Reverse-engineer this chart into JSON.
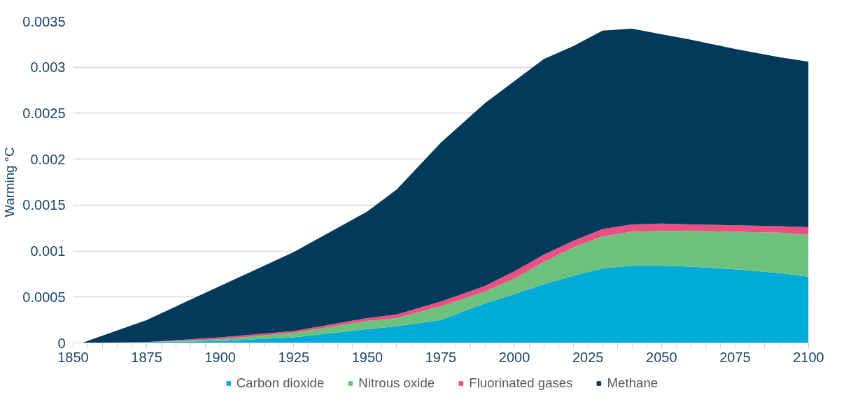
{
  "chart_data": {
    "type": "area",
    "stacked": true,
    "ylabel": "Warming °C",
    "x": [
      1850,
      1853,
      1875,
      1900,
      1925,
      1950,
      1960,
      1975,
      1990,
      2000,
      2010,
      2020,
      2030,
      2040,
      2050,
      2060,
      2075,
      2090,
      2100
    ],
    "series": [
      {
        "name": "Carbon dioxide",
        "color": "#00acd7",
        "values": [
          0,
          0,
          1e-05,
          2e-05,
          6e-05,
          0.00015,
          0.00018,
          0.00025,
          0.00043,
          0.00053,
          0.00064,
          0.00073,
          0.00081,
          0.00084,
          0.00084,
          0.00083,
          0.0008,
          0.00076,
          0.00072
        ]
      },
      {
        "name": "Nitrous oxide",
        "color": "#6cc17c",
        "values": [
          0,
          0,
          0,
          2e-05,
          5e-05,
          9e-05,
          9e-05,
          0.00015,
          0.00013,
          0.00017,
          0.00024,
          0.00031,
          0.00035,
          0.00037,
          0.00038,
          0.00039,
          0.00041,
          0.00044,
          0.00046
        ]
      },
      {
        "name": "Fluorinated gases",
        "color": "#ec4f82",
        "values": [
          0,
          0,
          0,
          2e-05,
          2e-05,
          3e-05,
          4e-05,
          5e-05,
          6e-05,
          8e-05,
          8e-05,
          7e-05,
          8e-05,
          8e-05,
          8e-05,
          7e-05,
          7e-05,
          7e-05,
          8e-05
        ]
      },
      {
        "name": "Methane",
        "color": "#023a5c",
        "values": [
          0,
          0,
          0.00024,
          0.00056,
          0.00086,
          0.00116,
          0.00136,
          0.00173,
          0.00199,
          0.00207,
          0.00213,
          0.00212,
          0.00216,
          0.00213,
          0.00206,
          0.00201,
          0.00192,
          0.00184,
          0.0018
        ]
      }
    ],
    "xlim": [
      1850,
      2100
    ],
    "xticks": [
      1850,
      {
        "value": 1855,
        "label": null
      },
      {
        "value": 1860,
        "label": null
      },
      {
        "value": 1865,
        "label": null
      },
      {
        "value": 1870,
        "label": null
      },
      1875,
      {
        "value": 1880,
        "label": null
      },
      {
        "value": 1885,
        "label": null
      },
      {
        "value": 1890,
        "label": null
      },
      {
        "value": 1895,
        "label": null
      },
      1900,
      {
        "value": 1905,
        "label": null
      },
      {
        "value": 1910,
        "label": null
      },
      {
        "value": 1915,
        "label": null
      },
      {
        "value": 1920,
        "label": null
      },
      1925,
      {
        "value": 1930,
        "label": null
      },
      {
        "value": 1935,
        "label": null
      },
      {
        "value": 1940,
        "label": null
      },
      {
        "value": 1945,
        "label": null
      },
      1950,
      {
        "value": 1955,
        "label": null
      },
      {
        "value": 1960,
        "label": null
      },
      {
        "value": 1965,
        "label": null
      },
      {
        "value": 1970,
        "label": null
      },
      1975,
      {
        "value": 1980,
        "label": null
      },
      {
        "value": 1985,
        "label": null
      },
      {
        "value": 1990,
        "label": null
      },
      {
        "value": 1995,
        "label": null
      },
      2000,
      {
        "value": 2005,
        "label": null
      },
      {
        "value": 2010,
        "label": null
      },
      {
        "value": 2015,
        "label": null
      },
      {
        "value": 2020,
        "label": null
      },
      2025,
      {
        "value": 2030,
        "label": null
      },
      {
        "value": 2035,
        "label": null
      },
      {
        "value": 2040,
        "label": null
      },
      {
        "value": 2045,
        "label": null
      },
      2050,
      {
        "value": 2055,
        "label": null
      },
      {
        "value": 2060,
        "label": null
      },
      {
        "value": 2065,
        "label": null
      },
      {
        "value": 2070,
        "label": null
      },
      2075,
      {
        "value": 2080,
        "label": null
      },
      {
        "value": 2085,
        "label": null
      },
      {
        "value": 2090,
        "label": null
      },
      {
        "value": 2095,
        "label": null
      },
      2100
    ],
    "ylim": [
      0,
      0.0035
    ],
    "yticks": [
      0,
      0.0005,
      0.001,
      0.0015,
      0.002,
      0.0025,
      0.003,
      0.0035
    ],
    "grid": "y",
    "legend": "bottom"
  }
}
